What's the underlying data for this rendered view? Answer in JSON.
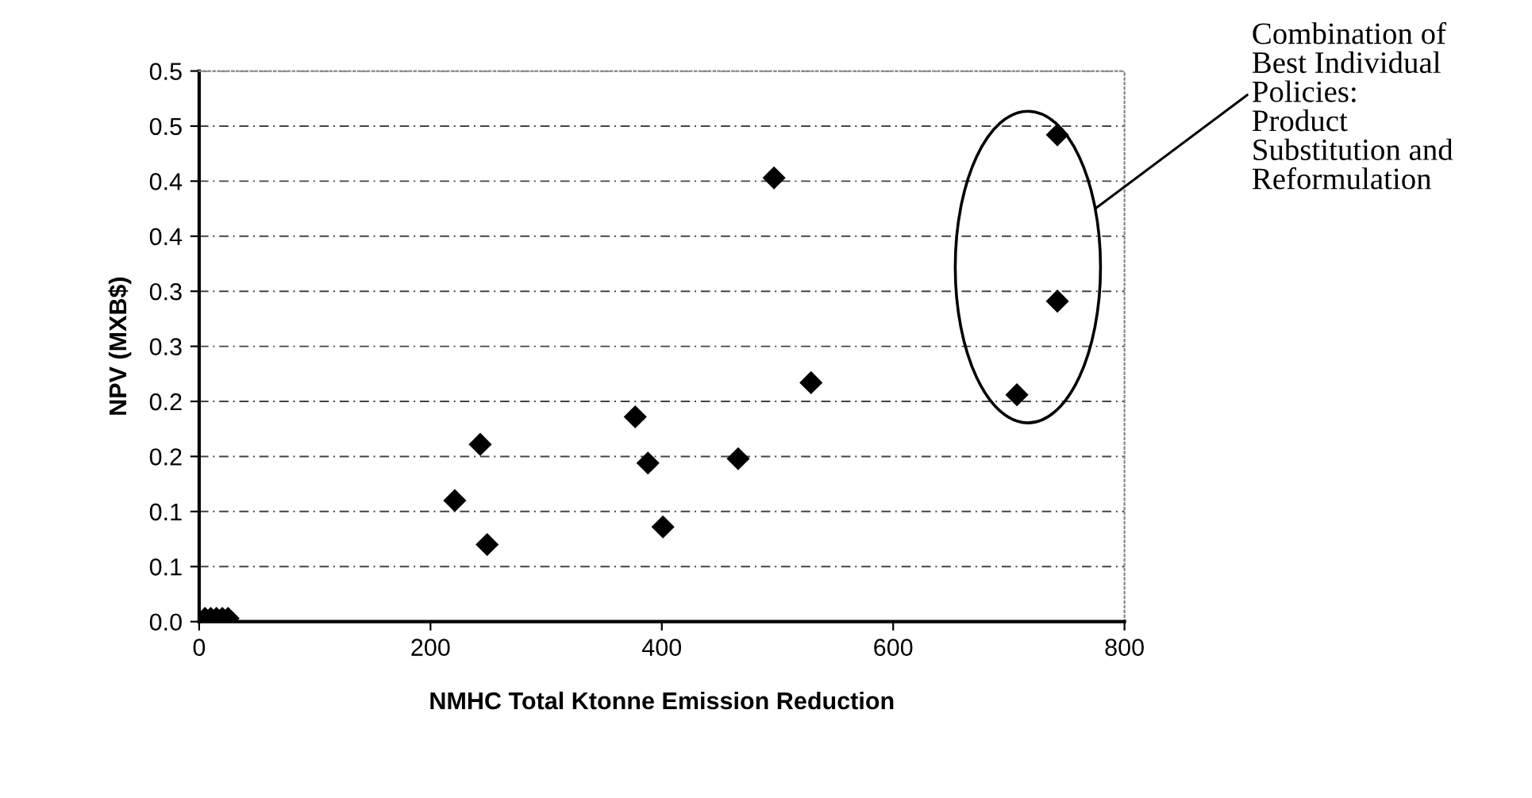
{
  "chart_data": {
    "type": "scatter",
    "xlabel": "NMHC Total Ktonne Emission Reduction",
    "ylabel": "NPV (MXB$)",
    "x": [
      5,
      10,
      15,
      20,
      25,
      221,
      243,
      249,
      377,
      388,
      401,
      466,
      497,
      529,
      707,
      742,
      742
    ],
    "series": [
      {
        "color": "#000000",
        "values": [
          0.003,
          0.003,
          0.003,
          0.003,
          0.003,
          0.11,
          0.161,
          0.07,
          0.186,
          0.144,
          0.086,
          0.148,
          0.403,
          0.217,
          0.206,
          0.291,
          0.442
        ]
      }
    ],
    "marker": "diamond",
    "xlim": [
      0,
      800
    ],
    "xticks": [
      0,
      200,
      400,
      600,
      800
    ],
    "ylim": [
      0,
      0.5
    ],
    "yticks": [
      {
        "value": 0,
        "label": "0.0"
      },
      {
        "value": 0.05,
        "label": "0.1"
      },
      {
        "value": 0.1,
        "label": "0.1"
      },
      {
        "value": 0.15,
        "label": "0.2"
      },
      {
        "value": 0.2,
        "label": "0.2"
      },
      {
        "value": 0.25,
        "label": "0.3"
      },
      {
        "value": 0.3,
        "label": "0.3"
      },
      {
        "value": 0.35,
        "label": "0.4"
      },
      {
        "value": 0.4,
        "label": "0.4"
      },
      {
        "value": 0.45,
        "label": "0.5"
      },
      {
        "value": 0.5,
        "label": "0.5"
      }
    ],
    "grid": "y",
    "annotations": [
      "Combination of\nBest Individual\nPolicies:\nProduct\nSubstitution and\nReformulation"
    ]
  }
}
